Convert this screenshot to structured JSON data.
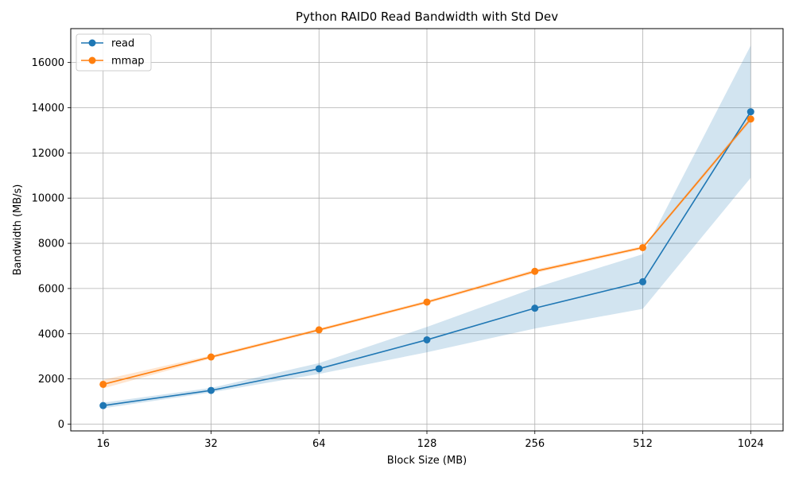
{
  "chart_data": {
    "type": "line",
    "title": "Python RAID0 Read Bandwidth with Std Dev",
    "xlabel": "Block Size (MB)",
    "ylabel": "Bandwidth (MB/s)",
    "categories": [
      "16",
      "32",
      "64",
      "128",
      "256",
      "512",
      "1024"
    ],
    "x": [
      16,
      32,
      64,
      128,
      256,
      512,
      1024
    ],
    "x_scale": "log2",
    "ylim": [
      -300,
      17500
    ],
    "yticks": [
      0,
      2000,
      4000,
      6000,
      8000,
      10000,
      12000,
      14000,
      16000
    ],
    "grid": true,
    "legend_position": "top-left",
    "series": [
      {
        "name": "read",
        "color": "#1f77b4",
        "values": [
          820,
          1490,
          2450,
          3730,
          5130,
          6300,
          13820
        ],
        "std_lower": [
          700,
          1400,
          2220,
          3180,
          4230,
          5100,
          10900
        ],
        "std_upper": [
          950,
          1600,
          2700,
          4300,
          6030,
          7520,
          16750
        ]
      },
      {
        "name": "mmap",
        "color": "#ff7f0e",
        "values": [
          1760,
          2970,
          4170,
          5400,
          6760,
          7810,
          13500
        ],
        "std_lower": [
          1580,
          2900,
          4100,
          5330,
          6680,
          7740,
          13400
        ],
        "std_upper": [
          1960,
          3040,
          4240,
          5470,
          6840,
          7880,
          13600
        ]
      }
    ]
  }
}
